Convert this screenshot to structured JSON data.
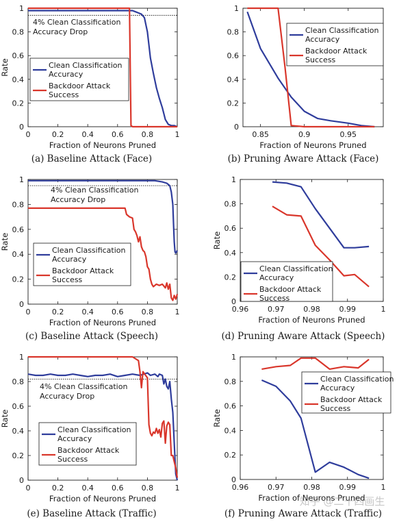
{
  "colors": {
    "clean": "#2f3d9c",
    "backdoor": "#d9362b",
    "axis": "#1a1a1a",
    "threshold": "#1a1a1a"
  },
  "watermark": "知乎 @二十四画生",
  "chart_data": [
    {
      "type": "line",
      "caption": "(a) Baseline Attack (Face)",
      "xlabel": "Fraction of Neurons Pruned",
      "ylabel": "Rate",
      "xlim": [
        0,
        1
      ],
      "ylim": [
        0,
        1
      ],
      "xticks": [
        0,
        0.2,
        0.4,
        0.6,
        0.8,
        1
      ],
      "xtick_labels": [
        "0",
        "0.2",
        "0.4",
        "0.6",
        "0.8",
        "1"
      ],
      "yticks": [
        0,
        0.2,
        0.4,
        0.6,
        0.8,
        1
      ],
      "ytick_labels": [
        "0",
        "0.2",
        "0.4",
        "0.6",
        "0.8",
        "1"
      ],
      "threshold": 0.94,
      "annotation": [
        "4% Clean Classification",
        "Accuracy Drop"
      ],
      "legend_place": "left",
      "series": [
        {
          "name": "Clean Classification Accuracy",
          "key": "clean",
          "x": [
            0,
            0.1,
            0.2,
            0.3,
            0.4,
            0.5,
            0.6,
            0.7,
            0.72,
            0.74,
            0.76,
            0.78,
            0.8,
            0.82,
            0.84,
            0.86,
            0.88,
            0.9,
            0.92,
            0.94,
            0.96,
            0.98,
            1.0
          ],
          "y": [
            0.98,
            0.98,
            0.98,
            0.98,
            0.98,
            0.98,
            0.98,
            0.98,
            0.97,
            0.96,
            0.95,
            0.92,
            0.8,
            0.58,
            0.45,
            0.33,
            0.24,
            0.16,
            0.06,
            0.02,
            0.01,
            0.01,
            0
          ]
        },
        {
          "name": "Backdoor Attack Success",
          "key": "backdoor",
          "x": [
            0,
            0.5,
            0.68,
            0.69,
            0.7,
            0.8,
            0.9,
            1.0
          ],
          "y": [
            1,
            1,
            1,
            0.01,
            0,
            0,
            0,
            0
          ]
        }
      ]
    },
    {
      "type": "line",
      "caption": "(b) Pruning Aware Attack (Face)",
      "xlabel": "Fraction of Neurons Pruned",
      "ylabel": "",
      "xlim": [
        0.83,
        0.99
      ],
      "ylim": [
        0,
        1
      ],
      "xticks": [
        0.85,
        0.9,
        0.95
      ],
      "xtick_labels": [
        "0.85",
        "0.9",
        "0.95"
      ],
      "yticks": [
        0,
        0.2,
        0.4,
        0.6,
        0.8,
        1
      ],
      "ytick_labels": [
        "0",
        "0.2",
        "0.4",
        "0.6",
        "0.8",
        "1"
      ],
      "legend_place": "top-right",
      "series": [
        {
          "name": "Clean Classification Accuracy",
          "key": "clean",
          "x": [
            0.835,
            0.85,
            0.87,
            0.885,
            0.9,
            0.915,
            0.93,
            0.95,
            0.965,
            0.98
          ],
          "y": [
            0.97,
            0.66,
            0.41,
            0.25,
            0.13,
            0.07,
            0.05,
            0.03,
            0.01,
            0.0
          ]
        },
        {
          "name": "Backdoor Attack Success",
          "key": "backdoor",
          "x": [
            0.835,
            0.85,
            0.865,
            0.87,
            0.878,
            0.885,
            0.9,
            0.95,
            0.98
          ],
          "y": [
            1,
            1,
            1,
            1,
            0.5,
            0.01,
            0,
            0,
            0
          ]
        }
      ]
    },
    {
      "type": "line",
      "caption": "(c) Baseline Attack (Speech)",
      "xlabel": "Fraction of Neurons Pruned",
      "ylabel": "Rate",
      "xlim": [
        0,
        1
      ],
      "ylim": [
        0,
        1
      ],
      "xticks": [
        0,
        0.2,
        0.4,
        0.6,
        0.8,
        1
      ],
      "xtick_labels": [
        "0",
        "0.2",
        "0.4",
        "0.6",
        "0.8",
        "1"
      ],
      "yticks": [
        0,
        0.2,
        0.4,
        0.6,
        0.8,
        1
      ],
      "ytick_labels": [
        "0",
        "0.2",
        "0.4",
        "0.6",
        "0.8",
        "1"
      ],
      "threshold": 0.95,
      "annotation": [
        "4% Clean Classification",
        "Accuracy Drop"
      ],
      "legend_place": "bottom-right",
      "series": [
        {
          "name": "Clean Classification Accuracy",
          "key": "clean",
          "x": [
            0,
            0.1,
            0.2,
            0.3,
            0.4,
            0.5,
            0.6,
            0.7,
            0.8,
            0.85,
            0.9,
            0.93,
            0.95,
            0.96,
            0.97,
            0.975,
            0.98,
            0.985,
            0.99,
            1.0
          ],
          "y": [
            0.99,
            0.99,
            0.99,
            0.99,
            0.99,
            0.99,
            0.99,
            0.99,
            0.99,
            0.99,
            0.98,
            0.97,
            0.95,
            0.9,
            0.8,
            0.65,
            0.5,
            0.42,
            0.41,
            0.43
          ]
        },
        {
          "name": "Backdoor Attack Success",
          "key": "backdoor",
          "x": [
            0,
            0.1,
            0.2,
            0.3,
            0.4,
            0.5,
            0.6,
            0.65,
            0.66,
            0.68,
            0.7,
            0.71,
            0.72,
            0.73,
            0.74,
            0.75,
            0.76,
            0.77,
            0.78,
            0.79,
            0.8,
            0.81,
            0.82,
            0.83,
            0.84,
            0.86,
            0.88,
            0.9,
            0.92,
            0.93,
            0.94,
            0.95,
            0.96,
            0.97,
            0.98,
            0.99,
            1.0
          ],
          "y": [
            0.77,
            0.77,
            0.77,
            0.77,
            0.77,
            0.77,
            0.77,
            0.77,
            0.72,
            0.7,
            0.69,
            0.6,
            0.58,
            0.55,
            0.5,
            0.54,
            0.46,
            0.43,
            0.42,
            0.38,
            0.3,
            0.28,
            0.2,
            0.16,
            0.14,
            0.16,
            0.15,
            0.16,
            0.13,
            0.17,
            0.12,
            0.16,
            0.05,
            0.03,
            0.07,
            0.04,
            0.08
          ]
        }
      ]
    },
    {
      "type": "line",
      "caption": "(d) Pruning Aware Attack (Speech)",
      "xlabel": "Fraction of Neurons Pruned",
      "ylabel": "Rate",
      "xlim": [
        0.96,
        1.0
      ],
      "ylim": [
        0,
        1
      ],
      "xticks": [
        0.96,
        0.97,
        0.98,
        0.99,
        1.0
      ],
      "xtick_labels": [
        "0.96",
        "0.97",
        "0.98",
        "0.99",
        "1"
      ],
      "yticks": [
        0,
        0.2,
        0.4,
        0.6,
        0.8,
        1
      ],
      "ytick_labels": [
        "0",
        "0.2",
        "0.4",
        "0.6",
        "0.8",
        "1"
      ],
      "legend_place": "bottom-left",
      "series": [
        {
          "name": "Clean Classification Accuracy",
          "key": "clean",
          "x": [
            0.969,
            0.973,
            0.977,
            0.981,
            0.985,
            0.989,
            0.992,
            0.996
          ],
          "y": [
            0.98,
            0.97,
            0.94,
            0.76,
            0.6,
            0.44,
            0.44,
            0.45
          ]
        },
        {
          "name": "Backdoor Attack Success",
          "key": "backdoor",
          "x": [
            0.969,
            0.973,
            0.977,
            0.981,
            0.985,
            0.989,
            0.992,
            0.996
          ],
          "y": [
            0.78,
            0.71,
            0.7,
            0.46,
            0.34,
            0.21,
            0.22,
            0.12
          ]
        }
      ]
    },
    {
      "type": "line",
      "caption": "(e) Baseline Attack (Traffic)",
      "xlabel": "Fraction of Neurons Pruned",
      "ylabel": "Rate",
      "xlim": [
        0,
        1
      ],
      "ylim": [
        0,
        1
      ],
      "xticks": [
        0,
        0.2,
        0.4,
        0.6,
        0.8,
        1
      ],
      "xtick_labels": [
        "0",
        "0.2",
        "0.4",
        "0.6",
        "0.8",
        "1"
      ],
      "yticks": [
        0,
        0.2,
        0.4,
        0.6,
        0.8,
        1
      ],
      "ytick_labels": [
        "0",
        "0.2",
        "0.4",
        "0.6",
        "0.8",
        "1"
      ],
      "threshold": 0.82,
      "annotation": [
        "4% Clean Classification",
        "Accuracy Drop"
      ],
      "legend_place": "bottom-left",
      "series": [
        {
          "name": "Clean Classification Accuracy",
          "key": "clean",
          "x": [
            0,
            0.05,
            0.1,
            0.15,
            0.2,
            0.25,
            0.3,
            0.35,
            0.4,
            0.45,
            0.5,
            0.55,
            0.6,
            0.65,
            0.7,
            0.75,
            0.8,
            0.82,
            0.85,
            0.87,
            0.88,
            0.9,
            0.91,
            0.92,
            0.93,
            0.94,
            0.95,
            0.96,
            0.97,
            0.98,
            0.99,
            1.0
          ],
          "y": [
            0.86,
            0.85,
            0.85,
            0.86,
            0.85,
            0.85,
            0.86,
            0.85,
            0.84,
            0.85,
            0.85,
            0.86,
            0.84,
            0.85,
            0.86,
            0.85,
            0.87,
            0.85,
            0.86,
            0.84,
            0.86,
            0.85,
            0.78,
            0.82,
            0.76,
            0.74,
            0.8,
            0.66,
            0.55,
            0.3,
            0.05,
            0.0
          ]
        },
        {
          "name": "Backdoor Attack Success",
          "key": "backdoor",
          "x": [
            0,
            0.1,
            0.2,
            0.3,
            0.4,
            0.5,
            0.6,
            0.7,
            0.74,
            0.75,
            0.76,
            0.77,
            0.8,
            0.81,
            0.82,
            0.83,
            0.84,
            0.85,
            0.86,
            0.87,
            0.88,
            0.89,
            0.9,
            0.91,
            0.92,
            0.93,
            0.94,
            0.95,
            0.96,
            0.97,
            0.98,
            0.99,
            1.0
          ],
          "y": [
            1,
            1,
            1,
            1,
            1,
            1,
            1,
            1,
            0.97,
            0.88,
            0.75,
            0.88,
            0.83,
            0.45,
            0.38,
            0.36,
            0.39,
            0.38,
            0.42,
            0.38,
            0.41,
            0.35,
            0.46,
            0.48,
            0.3,
            0.44,
            0.47,
            0.45,
            0.2,
            0.2,
            0.15,
            0.1,
            0.02
          ]
        }
      ]
    },
    {
      "type": "line",
      "caption": "(f) Pruning Aware Attack (Traffic)",
      "xlabel": "Fraction of Neurons Pruned",
      "ylabel": "Rate",
      "xlim": [
        0.96,
        1.0
      ],
      "ylim": [
        0,
        1
      ],
      "xticks": [
        0.96,
        0.97,
        0.98,
        0.99,
        1.0
      ],
      "xtick_labels": [
        "0.96",
        "0.97",
        "0.98",
        "0.99",
        "1"
      ],
      "yticks": [
        0,
        0.2,
        0.4,
        0.6,
        0.8,
        1
      ],
      "ytick_labels": [
        "0",
        "0.2",
        "0.4",
        "0.6",
        "0.8",
        "1"
      ],
      "legend_place": "top-right",
      "series": [
        {
          "name": "Clean Classification Accuracy",
          "key": "clean",
          "x": [
            0.966,
            0.97,
            0.974,
            0.977,
            0.981,
            0.985,
            0.989,
            0.993,
            0.996
          ],
          "y": [
            0.81,
            0.76,
            0.64,
            0.5,
            0.06,
            0.14,
            0.1,
            0.04,
            0.01
          ]
        },
        {
          "name": "Backdoor Attack Success",
          "key": "backdoor",
          "x": [
            0.966,
            0.97,
            0.974,
            0.977,
            0.981,
            0.985,
            0.989,
            0.993,
            0.996
          ],
          "y": [
            0.9,
            0.92,
            0.93,
            0.99,
            0.99,
            0.9,
            0.92,
            0.91,
            0.98
          ]
        }
      ]
    }
  ]
}
